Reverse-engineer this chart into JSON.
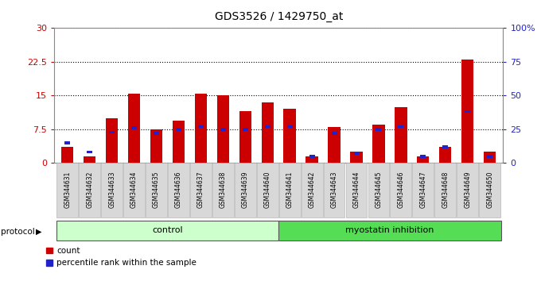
{
  "title": "GDS3526 / 1429750_at",
  "samples": [
    "GSM344631",
    "GSM344632",
    "GSM344633",
    "GSM344634",
    "GSM344635",
    "GSM344636",
    "GSM344637",
    "GSM344638",
    "GSM344639",
    "GSM344640",
    "GSM344641",
    "GSM344642",
    "GSM344643",
    "GSM344644",
    "GSM344645",
    "GSM344646",
    "GSM344647",
    "GSM344648",
    "GSM344649",
    "GSM344650"
  ],
  "red_values": [
    3.5,
    1.5,
    10.0,
    15.5,
    7.5,
    9.5,
    15.5,
    15.0,
    11.5,
    13.5,
    12.0,
    1.5,
    8.0,
    2.5,
    8.5,
    12.5,
    1.5,
    3.5,
    23.0,
    2.5
  ],
  "blue_percentile": [
    15,
    8,
    23,
    26,
    22,
    25,
    27,
    25,
    25,
    27,
    27,
    5,
    22,
    7,
    25,
    27,
    5,
    12,
    38,
    5
  ],
  "control_count": 10,
  "myostatin_count": 10,
  "protocol_label": "protocol",
  "control_label": "control",
  "myostatin_label": "myostatin inhibition",
  "legend_red": "count",
  "legend_blue": "percentile rank within the sample",
  "ylim_left": [
    0,
    30
  ],
  "ylim_right": [
    0,
    100
  ],
  "yticks_left": [
    0,
    7.5,
    15,
    22.5,
    30
  ],
  "yticks_right": [
    0,
    25,
    50,
    75,
    100
  ],
  "control_bg": "#ccffcc",
  "myostatin_bg": "#55dd55",
  "bar_color_red": "#cc0000",
  "bar_color_blue": "#2222cc",
  "left_axis_color": "#cc0000",
  "right_axis_color": "#2222cc"
}
